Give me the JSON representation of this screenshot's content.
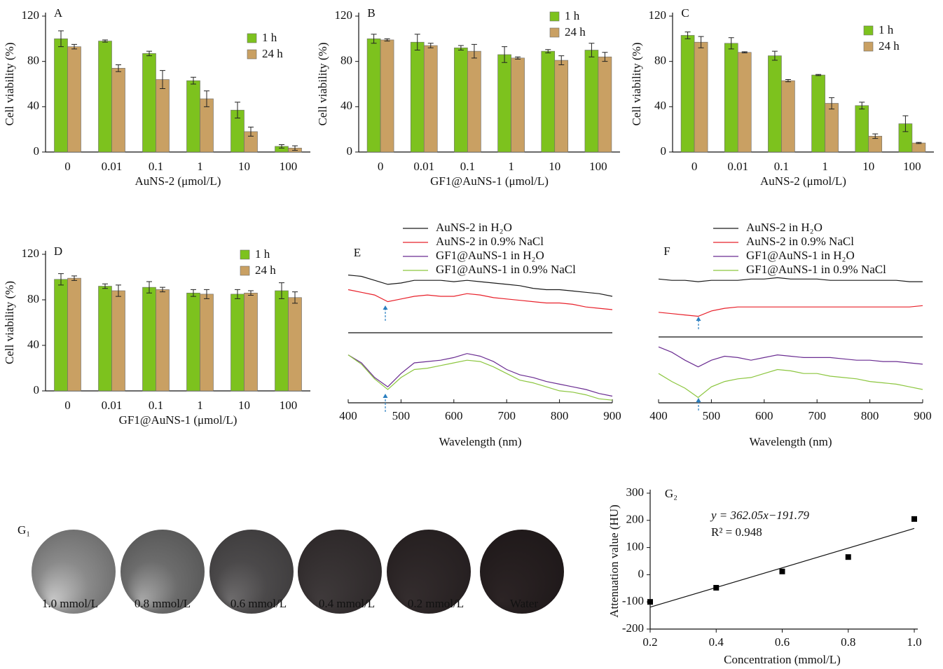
{
  "chart_data": [
    {
      "type": "bar",
      "panel_label": "A",
      "xlabel": "AuNS-2 (μmol/L)",
      "ylabel": "Cell viability (%)",
      "categories": [
        "0",
        "0.01",
        "0.1",
        "1",
        "10",
        "100"
      ],
      "ylim": [
        0,
        120
      ],
      "yticks": [
        0,
        40,
        80,
        120
      ],
      "series": [
        {
          "name": "1 h",
          "color": "#7dc21e",
          "values": [
            100,
            98,
            87,
            63,
            37,
            5
          ],
          "errors": [
            7,
            1,
            2,
            3,
            7,
            1.5
          ]
        },
        {
          "name": "24 h",
          "color": "#c9a063",
          "values": [
            93,
            74,
            64,
            47,
            18,
            3.5
          ],
          "errors": [
            2,
            3,
            8,
            7,
            4,
            2
          ]
        }
      ]
    },
    {
      "type": "bar",
      "panel_label": "B",
      "xlabel": "GF1@AuNS-1 (μmol/L)",
      "ylabel": "Cell viability (%)",
      "categories": [
        "0",
        "0.01",
        "0.1",
        "1",
        "10",
        "100"
      ],
      "ylim": [
        0,
        120
      ],
      "yticks": [
        0,
        40,
        80,
        120
      ],
      "series": [
        {
          "name": "1 h",
          "color": "#7dc21e",
          "values": [
            100,
            97,
            92,
            86,
            89,
            90
          ],
          "errors": [
            4,
            7,
            2,
            7,
            1.5,
            6
          ]
        },
        {
          "name": "24 h",
          "color": "#c9a063",
          "values": [
            99,
            94,
            89,
            83,
            81,
            84
          ],
          "errors": [
            1,
            2,
            6,
            1,
            4,
            4
          ]
        }
      ]
    },
    {
      "type": "bar",
      "panel_label": "C",
      "xlabel": "AuNS-2 (μmol/L)",
      "ylabel": "Cell viability (%)",
      "categories": [
        "0",
        "0.01",
        "0.1",
        "1",
        "10",
        "100"
      ],
      "ylim": [
        0,
        120
      ],
      "yticks": [
        0,
        40,
        80,
        120
      ],
      "series": [
        {
          "name": "1 h",
          "color": "#7dc21e",
          "values": [
            103,
            96,
            85,
            68,
            41,
            25
          ],
          "errors": [
            3,
            5,
            4,
            0.5,
            3,
            7
          ]
        },
        {
          "name": "24 h",
          "color": "#c9a063",
          "values": [
            97,
            88,
            63,
            43,
            14,
            8
          ],
          "errors": [
            5,
            0.5,
            1,
            5,
            2,
            0.5
          ]
        }
      ]
    },
    {
      "type": "bar",
      "panel_label": "D",
      "xlabel": "GF1@AuNS-1 (μmol/L)",
      "ylabel": "Cell viability (%)",
      "categories": [
        "0",
        "0.01",
        "0.1",
        "1",
        "10",
        "100"
      ],
      "ylim": [
        0,
        120
      ],
      "yticks": [
        0,
        40,
        80,
        120
      ],
      "series": [
        {
          "name": "1 h",
          "color": "#7dc21e",
          "values": [
            98,
            92,
            91,
            86,
            85,
            88
          ],
          "errors": [
            5,
            2,
            5,
            3,
            4,
            7
          ]
        },
        {
          "name": "24 h",
          "color": "#c9a063",
          "values": [
            99,
            88,
            89,
            85,
            86,
            82
          ],
          "errors": [
            2,
            5,
            2,
            4,
            2,
            5
          ]
        }
      ]
    },
    {
      "type": "line",
      "panel_label": "E",
      "xlabel": "Wavelength (nm)",
      "x": [
        400,
        425,
        450,
        475,
        500,
        525,
        550,
        575,
        600,
        625,
        650,
        675,
        700,
        725,
        750,
        775,
        800,
        825,
        850,
        875,
        900
      ],
      "xlim": [
        400,
        900
      ],
      "xticks": [
        400,
        500,
        600,
        700,
        800,
        900
      ],
      "ylim": [
        0,
        100
      ],
      "series": [
        {
          "name": "AuNS-2 in H₂O",
          "color": "#1a1a1a",
          "values": [
            96,
            95,
            92,
            89,
            90,
            92,
            92,
            92,
            91,
            92,
            91,
            90,
            89,
            88,
            86,
            85,
            85,
            84,
            83,
            82,
            80
          ]
        },
        {
          "name": "AuNS-2 in 0.9% NaCl",
          "color": "#e8202a",
          "values": [
            85,
            83,
            81,
            76,
            78,
            80,
            81,
            80,
            80,
            82,
            81,
            79,
            78,
            77,
            76,
            75,
            75,
            74,
            72,
            71,
            70
          ]
        },
        {
          "name": "GF1@AuNS-1 in H₂O",
          "color": "#6a2c91",
          "values": [
            36,
            30,
            19,
            12,
            22,
            30,
            31,
            32,
            34,
            37,
            35,
            31,
            25,
            21,
            19,
            16,
            14,
            12,
            10,
            7,
            5
          ]
        },
        {
          "name": "GF1@AuNS-1 in 0.9% NaCl",
          "color": "#8cc63f",
          "values": [
            36,
            29,
            18,
            10,
            19,
            25,
            26,
            28,
            30,
            32,
            31,
            27,
            22,
            17,
            15,
            12,
            9,
            8,
            6,
            3,
            2
          ]
        }
      ]
    },
    {
      "type": "line",
      "panel_label": "F",
      "xlabel": "Wavelength (nm)",
      "x": [
        400,
        425,
        450,
        475,
        500,
        525,
        550,
        575,
        600,
        625,
        650,
        675,
        700,
        725,
        750,
        775,
        800,
        825,
        850,
        875,
        900
      ],
      "xlim": [
        400,
        900
      ],
      "xticks": [
        400,
        500,
        600,
        700,
        800,
        900
      ],
      "ylim": [
        0,
        100
      ],
      "series": [
        {
          "name": "AuNS-2 in H₂O",
          "color": "#1a1a1a",
          "values": [
            93,
            92,
            92,
            91,
            92,
            92,
            92,
            93,
            93,
            94,
            93,
            93,
            93,
            92,
            92,
            92,
            92,
            92,
            92,
            91,
            91
          ]
        },
        {
          "name": "AuNS-2 in 0.9% NaCl",
          "color": "#e8202a",
          "values": [
            68,
            67,
            66,
            65,
            69,
            71,
            72,
            72,
            72,
            72,
            72,
            72,
            72,
            72,
            72,
            72,
            72,
            72,
            72,
            72,
            73
          ]
        },
        {
          "name": "GF1@AuNS-1 in H₂O",
          "color": "#6a2c91",
          "values": [
            42,
            38,
            32,
            27,
            32,
            35,
            34,
            32,
            34,
            36,
            35,
            34,
            34,
            34,
            33,
            32,
            32,
            31,
            31,
            30,
            29
          ]
        },
        {
          "name": "GF1@AuNS-1 in 0.9% NaCl",
          "color": "#8cc63f",
          "values": [
            22,
            16,
            11,
            4,
            12,
            16,
            18,
            19,
            22,
            25,
            24,
            22,
            22,
            20,
            19,
            18,
            16,
            15,
            14,
            12,
            10
          ]
        }
      ]
    },
    {
      "type": "scatter",
      "panel_label": "G₂",
      "xlabel": "Concentration (mmol/L)",
      "ylabel": "Attenuation value (HU)",
      "x": [
        0.2,
        0.4,
        0.6,
        0.8,
        1
      ],
      "values": [
        -100,
        -48,
        12,
        65,
        205
      ],
      "color": "#000000",
      "xlim": [
        0.2,
        1
      ],
      "xticks": [
        0.2,
        0.4,
        0.6,
        0.8,
        {
          "value": 1,
          "label": "1.0"
        }
      ],
      "ylim": [
        -200,
        300
      ],
      "yticks": [
        -200,
        -100,
        0,
        100,
        200,
        300
      ],
      "fit_line": {
        "x": [
          0.2,
          1
        ],
        "y": [
          -119.4,
          170.3
        ]
      },
      "equation": "y = 362.05x−191.79",
      "r2": "R² = 0.948"
    }
  ],
  "phantom_panel": {
    "label": "G₁",
    "samples": [
      "1.0 mmol/L",
      "0.8 mmol/L",
      "0.6 mmol/L",
      "0.4 mmol/L",
      "0.2 mmol/L",
      "Water"
    ]
  }
}
